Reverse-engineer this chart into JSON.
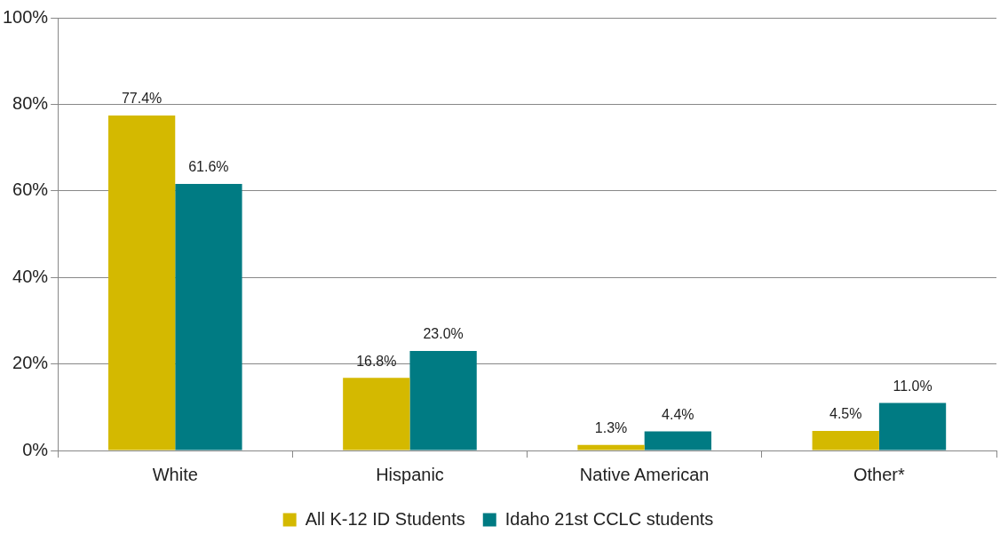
{
  "chart_data": {
    "type": "bar",
    "categories": [
      "White",
      "Hispanic",
      "Native American",
      "Other*"
    ],
    "series": [
      {
        "name": "All K-12 ID Students",
        "color": "#d4b900",
        "values": [
          77.4,
          16.8,
          1.3,
          4.5
        ],
        "value_labels": [
          "77.4%",
          "16.8%",
          "1.3%",
          "4.5%"
        ]
      },
      {
        "name": "Idaho 21st CCLC students",
        "color": "#007b83",
        "values": [
          61.6,
          23.0,
          4.4,
          11.0
        ],
        "value_labels": [
          "61.6%",
          "23.0%",
          "4.4%",
          "11.0%"
        ]
      }
    ],
    "ylim": [
      0,
      100
    ],
    "yticks": [
      {
        "value": 0,
        "label": "0%"
      },
      {
        "value": 20,
        "label": "20%"
      },
      {
        "value": 40,
        "label": "40%"
      },
      {
        "value": 60,
        "label": "60%"
      },
      {
        "value": 80,
        "label": "80%"
      },
      {
        "value": 100,
        "label": "100%"
      }
    ],
    "grid": "y",
    "legend": "bottom"
  }
}
